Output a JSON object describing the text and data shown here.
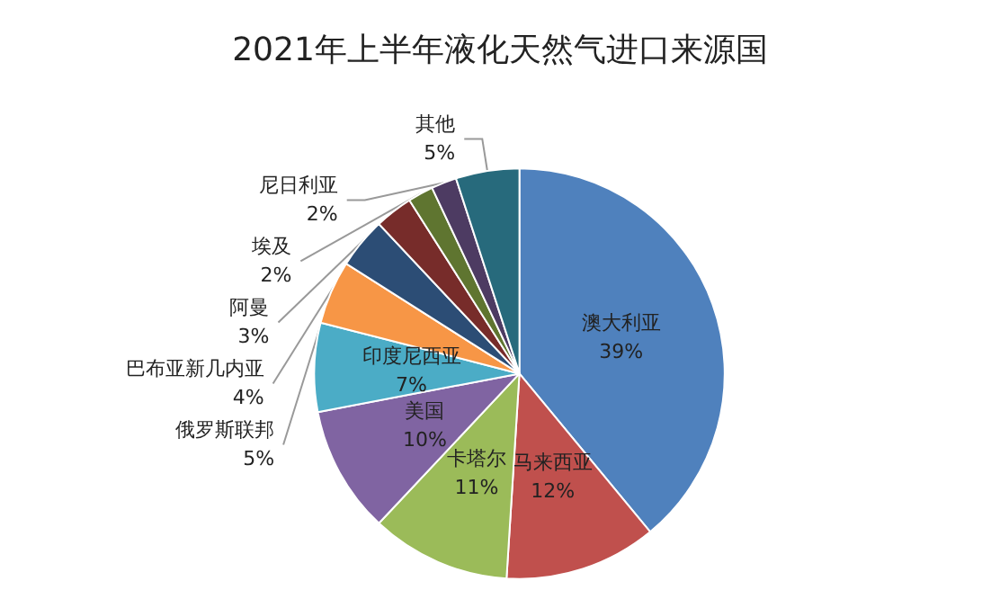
{
  "chart_data": {
    "type": "pie",
    "title": "2021年上半年液化天然气进口来源国",
    "categories": [
      "澳大利亚",
      "马来西亚",
      "卡塔尔",
      "美国",
      "印度尼西亚",
      "俄罗斯联邦",
      "巴布亚新几内亚",
      "阿曼",
      "埃及",
      "尼日利亚",
      "其他"
    ],
    "values": [
      39,
      12,
      11,
      10,
      7,
      5,
      4,
      3,
      2,
      2,
      5
    ],
    "value_labels": [
      "39%",
      "12%",
      "11%",
      "10%",
      "7%",
      "5%",
      "4%",
      "3%",
      "2%",
      "2%",
      "5%"
    ],
    "colors": [
      "#4f81bd",
      "#c0504d",
      "#9bbb59",
      "#8064a2",
      "#4bacc6",
      "#f79646",
      "#2c4d75",
      "#772c2a",
      "#5f7530",
      "#4d3b62",
      "#276a7c"
    ],
    "legend": false
  }
}
